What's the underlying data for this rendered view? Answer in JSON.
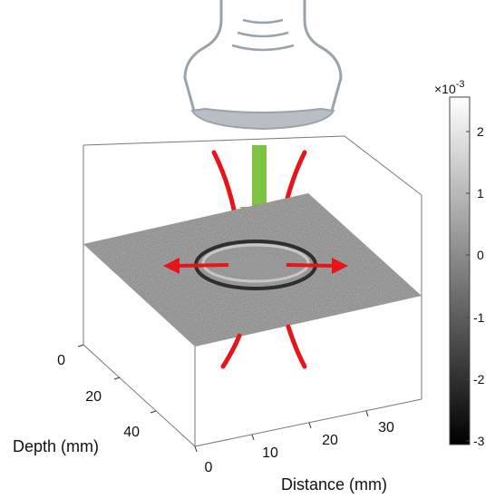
{
  "figure": {
    "xlabel": "Distance (mm)",
    "ylabel": "Depth (mm)",
    "x_ticks": [
      "0",
      "10",
      "20",
      "30"
    ],
    "y_ticks": [
      "0",
      "20",
      "40"
    ],
    "colorbar": {
      "multiplier": "×10",
      "exponent": "-3",
      "ticks": [
        "2",
        "1",
        "0",
        "-1",
        "-2",
        "-3"
      ],
      "range": [
        -3,
        2.6
      ],
      "colormap": "gray"
    }
  },
  "colors": {
    "arrow_red": "#e8141b",
    "arrow_green": "#7cc243",
    "probe_outline": "#9aa3ab",
    "probe_lens": "#b9bec4",
    "box_line": "#666666"
  }
}
